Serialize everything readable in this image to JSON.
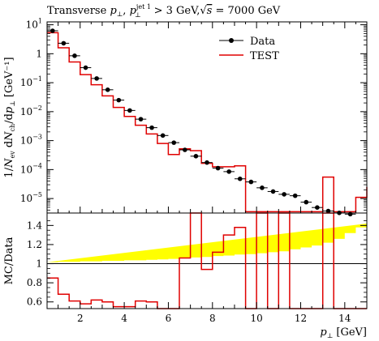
{
  "chart_data": [
    {
      "type": "scatter",
      "panel": "main",
      "title": "Transverse p⊥, p⊥^jet 1 > 3 GeV, √s = 7000 GeV",
      "title_parts": {
        "prefix": "Transverse ",
        "p": "p",
        "perp": "⊥",
        "sep": ", ",
        "jet_sup": "jet 1",
        "cut": " > 3 GeV,",
        "sqrt": "√",
        "s": "s",
        "energy": " = 7000 GeV"
      },
      "ylabel": "1/Nev dNch/dp⊥ [GeV⁻¹]",
      "ylabel_parts": {
        "pre": "1/",
        "N": "N",
        "ev": "ev",
        "mid": " d",
        "Nch": "N",
        "ch": "ch",
        "dp": "/d",
        "p": "p",
        "perp": "⊥",
        "unit": " [GeV⁻¹]"
      },
      "yscale": "log",
      "xlim": [
        0.5,
        15.0
      ],
      "ylim_log10": [
        -5.5,
        1.1
      ],
      "yticks": [
        {
          "label": "10",
          "exp": "1",
          "log": 1
        },
        {
          "label": "1",
          "exp": "",
          "log": 0
        },
        {
          "label": "10",
          "exp": "−1",
          "log": -1
        },
        {
          "label": "10",
          "exp": "−2",
          "log": -2
        },
        {
          "label": "10",
          "exp": "−3",
          "log": -3
        },
        {
          "label": "10",
          "exp": "−4",
          "log": -4
        },
        {
          "label": "10",
          "exp": "−5",
          "log": -5
        }
      ],
      "legend_position": "top-right",
      "legend": [
        {
          "name": "Data",
          "style": "black-points"
        },
        {
          "name": "TEST",
          "style": "red-line"
        }
      ],
      "series": [
        {
          "name": "Data",
          "color": "#000000",
          "x": [
            0.75,
            1.25,
            1.75,
            2.25,
            2.75,
            3.25,
            3.75,
            4.25,
            4.75,
            5.25,
            5.75,
            6.25,
            6.75,
            7.25,
            7.75,
            8.25,
            8.75,
            9.25,
            9.75,
            10.25,
            10.75,
            11.25,
            11.75,
            12.25,
            12.75,
            13.25,
            13.75,
            14.25
          ],
          "y": [
            6.2,
            2.3,
            0.85,
            0.33,
            0.14,
            0.057,
            0.025,
            0.011,
            0.0055,
            0.0028,
            0.0015,
            0.00085,
            0.00048,
            0.00029,
            0.000175,
            0.000112,
            8.5e-05,
            4.8e-05,
            3.75e-05,
            2.35e-05,
            1.75e-05,
            1.4e-05,
            1.25e-05,
            7.5e-06,
            4.9e-06,
            3.7e-06,
            3.2e-06,
            2.9e-06
          ]
        },
        {
          "name": "TEST",
          "color": "#e00000",
          "bins": [
            0.5,
            1.0,
            1.5,
            2.0,
            2.5,
            3.0,
            3.5,
            4.0,
            4.5,
            5.0,
            5.5,
            6.0,
            6.5,
            7.0,
            7.5,
            8.0,
            8.5,
            9.0,
            9.5,
            10.0,
            10.5,
            11.0,
            11.5,
            12.0,
            12.5,
            13.0,
            13.5,
            14.0,
            14.5,
            15.0
          ],
          "values": [
            5.3,
            1.6,
            0.52,
            0.19,
            0.085,
            0.035,
            0.014,
            0.0068,
            0.0034,
            0.0017,
            0.0008,
            0.00033,
            0.00052,
            0.00045,
            0.000165,
            0.000125,
            0.000125,
            0.000135,
            3.5e-06,
            3.5e-06,
            3.5e-06,
            3.5e-06,
            3.5e-06,
            3.5e-06,
            3.5e-06,
            5.5e-05,
            3.5e-06,
            3.5e-06,
            1.1e-05,
            2.5e-05
          ]
        }
      ]
    },
    {
      "type": "line",
      "panel": "ratio",
      "ylabel": "MC/Data",
      "xlabel": "p⊥ [GeV]",
      "xlabel_parts": {
        "p": "p",
        "perp": "⊥",
        "unit": " [GeV]"
      },
      "xlim": [
        0.5,
        15.0
      ],
      "ylim": [
        0.53,
        1.53
      ],
      "xticks": [
        2,
        4,
        6,
        8,
        10,
        12,
        14
      ],
      "xtick_labels": [
        "2",
        "4",
        "6",
        "8",
        "10",
        "12",
        "14"
      ],
      "yticks": [
        0.6,
        0.8,
        1.0,
        1.2,
        1.4
      ],
      "ytick_labels": [
        "0.6",
        "0.8",
        "1",
        "1.2",
        "1.4"
      ],
      "band": {
        "color": "#ffff00",
        "bins": [
          0.5,
          1.0,
          1.5,
          2.0,
          2.5,
          3.0,
          3.5,
          4.0,
          4.5,
          5.0,
          5.5,
          6.0,
          6.5,
          7.0,
          7.5,
          8.0,
          8.5,
          9.0,
          9.5,
          10.0,
          10.5,
          11.0,
          11.5,
          12.0,
          12.5,
          13.0,
          13.5,
          14.0,
          14.5,
          15.0
        ],
        "half_width": [
          0.015,
          0.02,
          0.02,
          0.025,
          0.025,
          0.03,
          0.03,
          0.035,
          0.035,
          0.04,
          0.045,
          0.05,
          0.06,
          0.065,
          0.07,
          0.08,
          0.085,
          0.095,
          0.1,
          0.11,
          0.12,
          0.13,
          0.15,
          0.17,
          0.19,
          0.22,
          0.26,
          0.32,
          0.38,
          0.42
        ]
      },
      "series": [
        {
          "name": "TEST",
          "color": "#e00000",
          "bins": [
            0.5,
            1.0,
            1.5,
            2.0,
            2.5,
            3.0,
            3.5,
            4.0,
            4.5,
            5.0,
            5.5,
            6.0,
            6.5,
            7.0,
            7.5,
            8.0,
            8.5,
            9.0,
            9.5,
            10.0,
            10.5,
            11.0,
            11.5,
            12.0,
            12.5,
            13.0,
            13.5,
            14.0,
            14.5,
            15.0
          ],
          "values": [
            0.85,
            0.68,
            0.61,
            0.58,
            0.62,
            0.6,
            0.55,
            0.55,
            0.61,
            0.6,
            0.52,
            0.4,
            1.06,
            1.55,
            0.94,
            1.12,
            1.3,
            1.38,
            0.0,
            1.56,
            0.0,
            1.55,
            0.0,
            0.0,
            0.0,
            1.56,
            0.0,
            0.0,
            0.0,
            0.0
          ]
        }
      ]
    }
  ]
}
